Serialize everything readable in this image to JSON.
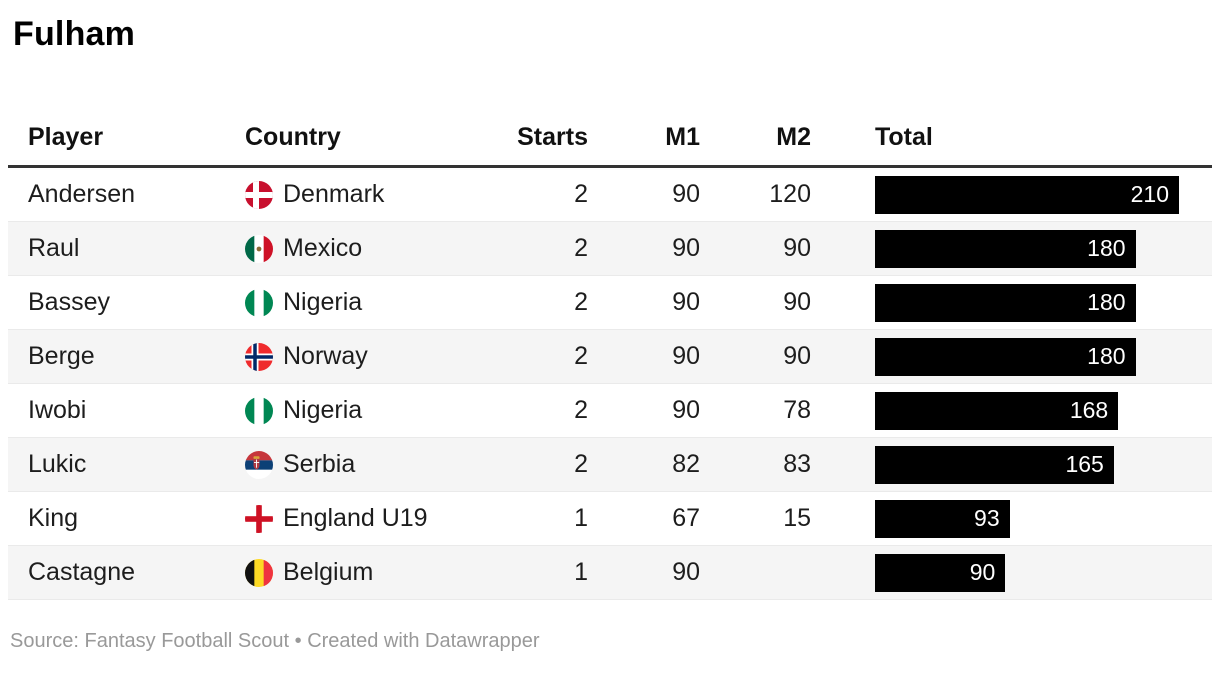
{
  "title": "Fulham",
  "table": {
    "columns": [
      "Player",
      "Country",
      "Starts",
      "M1",
      "M2",
      "Total"
    ],
    "max_total": 210,
    "rows": [
      {
        "player": "Andersen",
        "country": "Denmark",
        "flag": "denmark-flag-icon",
        "starts": "2",
        "m1": "90",
        "m2": "120",
        "total": 210
      },
      {
        "player": "Raul",
        "country": "Mexico",
        "flag": "mexico-flag-icon",
        "starts": "2",
        "m1": "90",
        "m2": "90",
        "total": 180
      },
      {
        "player": "Bassey",
        "country": "Nigeria",
        "flag": "nigeria-flag-icon",
        "starts": "2",
        "m1": "90",
        "m2": "90",
        "total": 180
      },
      {
        "player": "Berge",
        "country": "Norway",
        "flag": "norway-flag-icon",
        "starts": "2",
        "m1": "90",
        "m2": "90",
        "total": 180
      },
      {
        "player": "Iwobi",
        "country": "Nigeria",
        "flag": "nigeria-flag-icon",
        "starts": "2",
        "m1": "90",
        "m2": "78",
        "total": 168
      },
      {
        "player": "Lukic",
        "country": "Serbia",
        "flag": "serbia-flag-icon",
        "starts": "2",
        "m1": "82",
        "m2": "83",
        "total": 165
      },
      {
        "player": "King",
        "country": "England U19",
        "flag": "england-flag-icon",
        "starts": "1",
        "m1": "67",
        "m2": "15",
        "total": 93
      },
      {
        "player": "Castagne",
        "country": "Belgium",
        "flag": "belgium-flag-icon",
        "starts": "1",
        "m1": "90",
        "m2": "",
        "total": 90
      }
    ]
  },
  "footer": {
    "source_label": "Source:",
    "source_name": "Fantasy Football Scout",
    "separator": "•",
    "attribution": "Created with Datawrapper"
  },
  "colors": {
    "bar": "#000000",
    "bar_label": "#ffffff",
    "row_stripe": "#f5f5f5",
    "header_border": "#333333",
    "row_border": "#eaeaea",
    "text": "#1d1d1d",
    "footer_text": "#999999"
  },
  "chart_data": {
    "type": "table",
    "title": "Fulham",
    "columns": [
      "Player",
      "Country",
      "Starts",
      "M1",
      "M2",
      "Total"
    ],
    "rows": [
      [
        "Andersen",
        "Denmark",
        2,
        90,
        120,
        210
      ],
      [
        "Raul",
        "Mexico",
        2,
        90,
        90,
        180
      ],
      [
        "Bassey",
        "Nigeria",
        2,
        90,
        90,
        180
      ],
      [
        "Berge",
        "Norway",
        2,
        90,
        90,
        180
      ],
      [
        "Iwobi",
        "Nigeria",
        2,
        90,
        78,
        168
      ],
      [
        "Lukic",
        "Serbia",
        2,
        82,
        83,
        165
      ],
      [
        "King",
        "England U19",
        1,
        67,
        15,
        93
      ],
      [
        "Castagne",
        "Belgium",
        1,
        90,
        null,
        90
      ]
    ],
    "bar_column": "Total",
    "bar_scale": [
      0,
      210
    ],
    "source": "Fantasy Football Scout"
  }
}
